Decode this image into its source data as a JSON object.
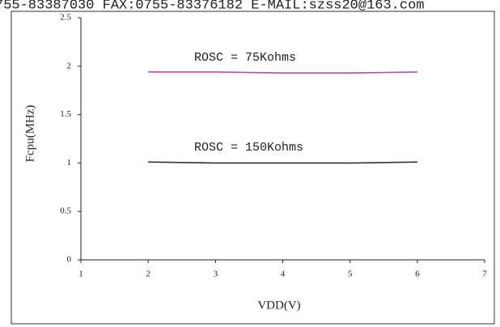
{
  "header_text": "755-83387030 FAX:0755-83376182 E-MAIL:szss20@163.com",
  "chart_data": {
    "type": "line",
    "x_label": "VDD(V)",
    "y_label": "Fcpu(MHz)",
    "x": [
      2,
      3,
      4,
      5,
      6
    ],
    "series": [
      {
        "name": "ROSC = 75Kohms",
        "color": "#c04a9c",
        "values": [
          1.94,
          1.94,
          1.93,
          1.93,
          1.94
        ]
      },
      {
        "name": "ROSC = 150Kohms",
        "color": "#333333",
        "values": [
          1.01,
          1.0,
          1.0,
          1.0,
          1.01
        ]
      }
    ],
    "xlim": [
      1,
      7
    ],
    "xticks": [
      1,
      2,
      3,
      4,
      5,
      6,
      7
    ],
    "ylim": [
      0,
      2.5
    ],
    "yticks": [
      0,
      0.5,
      1,
      1.5,
      2,
      2.5
    ],
    "grid": false
  }
}
